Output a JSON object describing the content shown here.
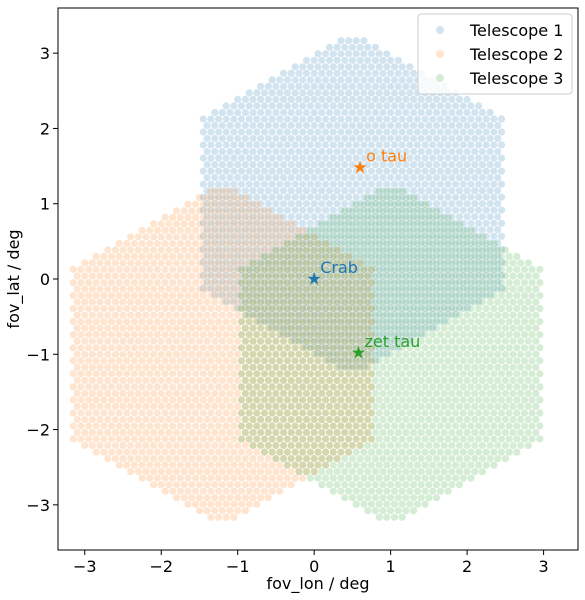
{
  "chart_data": {
    "type": "scatter",
    "title": "",
    "xlabel": "fov_lon / deg",
    "ylabel": "fov_lat / deg",
    "xlim": [
      -3.35,
      3.45
    ],
    "ylim": [
      -3.6,
      3.6
    ],
    "xticks": [
      -3,
      -2,
      -1,
      0,
      1,
      2,
      3
    ],
    "yticks": [
      -3,
      -2,
      -1,
      0,
      1,
      2,
      3
    ],
    "grid": false,
    "legend": "top-right",
    "series": [
      {
        "name": "Telescope 1",
        "color": "#1f77b4",
        "alpha": 0.2,
        "shape": "hexagon",
        "center": [
          0.5,
          1.0
        ],
        "circumradius": 2.3,
        "pixel_spacing": 0.1
      },
      {
        "name": "Telescope 2",
        "color": "#ff7f0e",
        "alpha": 0.2,
        "shape": "hexagon",
        "center": [
          -1.2,
          -1.0
        ],
        "circumradius": 2.3,
        "pixel_spacing": 0.1
      },
      {
        "name": "Telescope 3",
        "color": "#2ca02c",
        "alpha": 0.2,
        "shape": "hexagon",
        "center": [
          1.0,
          -1.0
        ],
        "circumradius": 2.3,
        "pixel_spacing": 0.1
      }
    ],
    "annotations": [
      {
        "label": "Crab",
        "x": 0.0,
        "y": 0.0,
        "color": "#1f77b4",
        "marker": "star"
      },
      {
        "label": "o tau",
        "x": 0.6,
        "y": 1.48,
        "color": "#ff7f0e",
        "marker": "star"
      },
      {
        "label": "zet tau",
        "x": 0.58,
        "y": -0.98,
        "color": "#2ca02c",
        "marker": "star"
      }
    ]
  }
}
